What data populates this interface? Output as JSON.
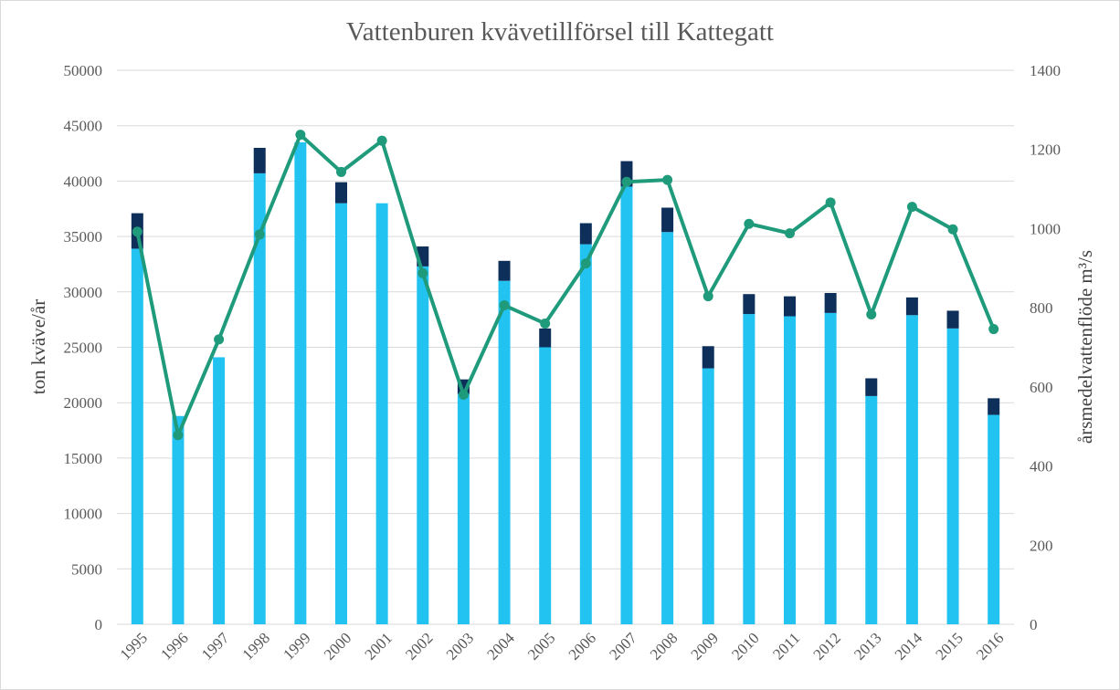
{
  "chart_data": {
    "type": "bar",
    "title": "Vattenburen kvävetillförsel till Kattegatt",
    "categories": [
      "1995",
      "1996",
      "1997",
      "1998",
      "1999",
      "2000",
      "2001",
      "2002",
      "2003",
      "2004",
      "2005",
      "2006",
      "2007",
      "2008",
      "2009",
      "2010",
      "2011",
      "2012",
      "2013",
      "2014",
      "2015",
      "2016"
    ],
    "series": [
      {
        "kind": "bar",
        "stack": "nitrogen",
        "axis": "left",
        "color": "#22c3f1",
        "values": [
          33900,
          18800,
          24100,
          40700,
          43500,
          38000,
          38000,
          32300,
          20800,
          31000,
          25000,
          34300,
          39500,
          35400,
          23100,
          28000,
          27800,
          28100,
          20600,
          27900,
          26700,
          18900
        ]
      },
      {
        "kind": "bar",
        "stack": "nitrogen",
        "axis": "left",
        "color": "#0d2f5a",
        "values": [
          3200,
          0,
          0,
          2300,
          0,
          1900,
          0,
          1800,
          1300,
          1800,
          1700,
          1900,
          2300,
          2200,
          2000,
          1800,
          1800,
          1800,
          1600,
          1600,
          1600,
          1500
        ]
      },
      {
        "kind": "line",
        "axis": "right",
        "color": "#1f9b7c",
        "values": [
          992,
          478,
          720,
          985,
          1237,
          1143,
          1222,
          887,
          580,
          806,
          760,
          912,
          1118,
          1123,
          829,
          1012,
          988,
          1066,
          783,
          1055,
          998,
          746
        ]
      }
    ],
    "ylabel": "ton kväve/år",
    "ylim": [
      0,
      50000
    ],
    "yticks": [
      "0",
      "5000",
      "10000",
      "15000",
      "20000",
      "25000",
      "30000",
      "35000",
      "40000",
      "45000",
      "50000"
    ],
    "y2label": "årsmedelvattenflöde m³/s",
    "y2lim": [
      0,
      1400
    ],
    "y2ticks": [
      "0",
      "200",
      "400",
      "600",
      "800",
      "1000",
      "1200",
      "1400"
    ],
    "grid": true,
    "legend": "none"
  }
}
